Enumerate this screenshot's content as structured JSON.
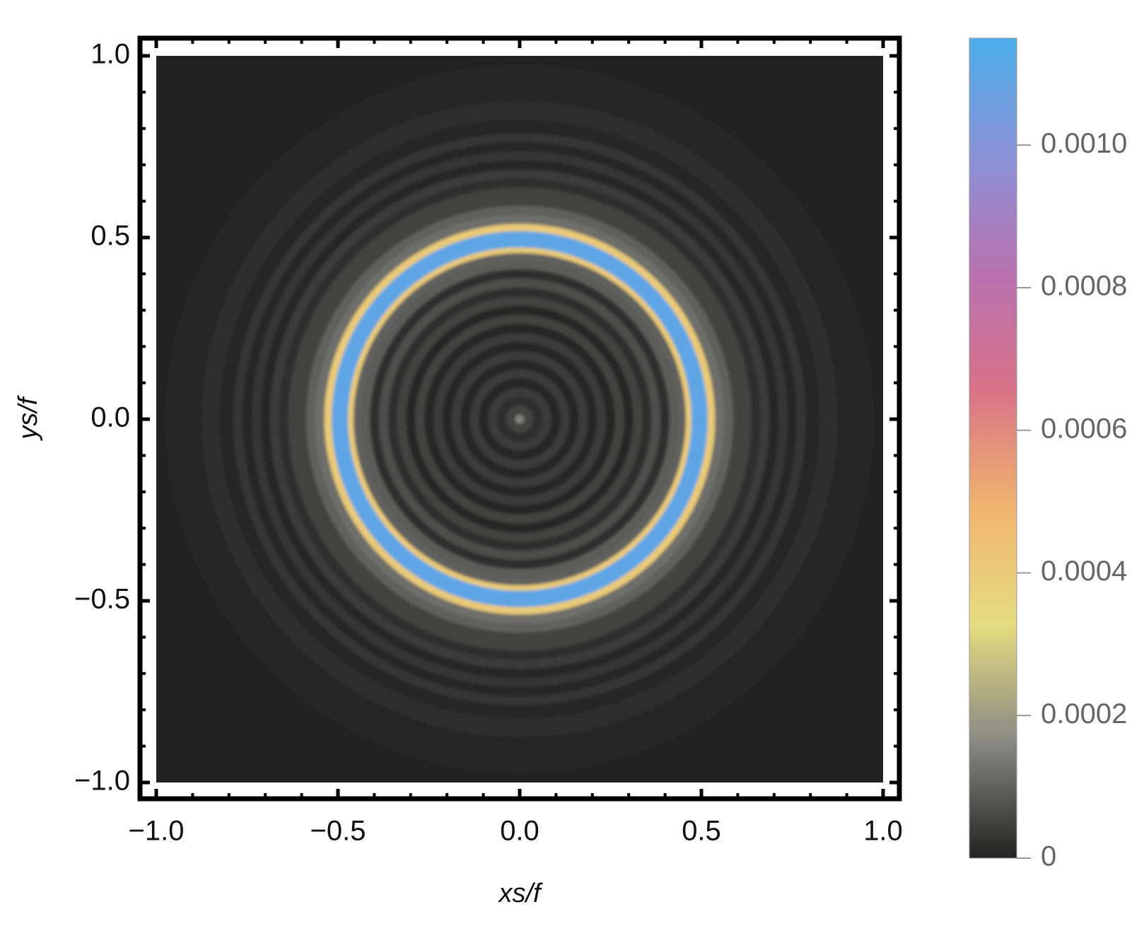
{
  "chart_data": {
    "type": "density",
    "xlabel": "xs/f",
    "ylabel": "ys/f",
    "xlim": [
      -1,
      1
    ],
    "ylim": [
      -1,
      1
    ],
    "xticks": [
      {
        "value": -1,
        "label": "−1.0"
      },
      {
        "value": -0.5,
        "label": "−0.5"
      },
      {
        "value": 0,
        "label": "0.0"
      },
      0.5,
      {
        "value": 1,
        "label": "1.0"
      }
    ],
    "yticks": [
      {
        "value": -1,
        "label": "−1.0"
      },
      {
        "value": -0.5,
        "label": "−0.5"
      },
      {
        "value": 0,
        "label": "0.0"
      },
      0.5,
      {
        "value": 1,
        "label": "1.0"
      }
    ],
    "minorticks": [
      -0.9,
      -0.8,
      -0.7,
      -0.6,
      -0.4,
      -0.3,
      -0.2,
      -0.1,
      0.1,
      0.2,
      0.3,
      0.4,
      0.6,
      0.7,
      0.8,
      0.9
    ],
    "radial_profile": {
      "r": [
        0,
        0.025,
        0.05,
        0.075,
        0.1,
        0.125,
        0.15,
        0.175,
        0.2,
        0.225,
        0.25,
        0.275,
        0.3,
        0.325,
        0.35,
        0.375,
        0.4,
        0.425,
        0.45,
        0.465,
        0.48,
        0.495,
        0.51,
        0.525,
        0.55,
        0.575,
        0.6,
        0.625,
        0.65,
        0.675,
        0.7,
        0.725,
        0.75,
        0.775,
        0.8,
        0.85,
        0.9,
        0.95,
        1.0
      ],
      "values": [
        0.00015,
        5e-05,
        2e-05,
        4e-05,
        1e-05,
        4e-05,
        1e-05,
        4e-05,
        1e-05,
        4e-05,
        1e-05,
        5e-05,
        1e-05,
        5e-05,
        2e-05,
        7e-05,
        2e-05,
        9e-05,
        0.0001,
        0.0004,
        0.0011,
        0.0011,
        0.0011,
        0.0004,
        0.00012,
        0.0001,
        5e-05,
        5e-05,
        2e-05,
        4e-05,
        1e-05,
        3e-05,
        1e-05,
        3e-05,
        1e-05,
        2e-05,
        1e-05,
        1e-05,
        0
      ]
    },
    "colorbar": {
      "lim": [
        0,
        0.00115
      ],
      "ticks": [
        0,
        0.0002,
        0.0004,
        0.0006,
        0.0008,
        {
          "value": 0.001,
          "label": "0.0010"
        }
      ],
      "colors": [
        "#222222",
        "#8a8a84",
        "#e6dc80",
        "#f0b46e",
        "#d87288",
        "#b872b0",
        "#8a92d8",
        "#4caeea"
      ]
    }
  }
}
